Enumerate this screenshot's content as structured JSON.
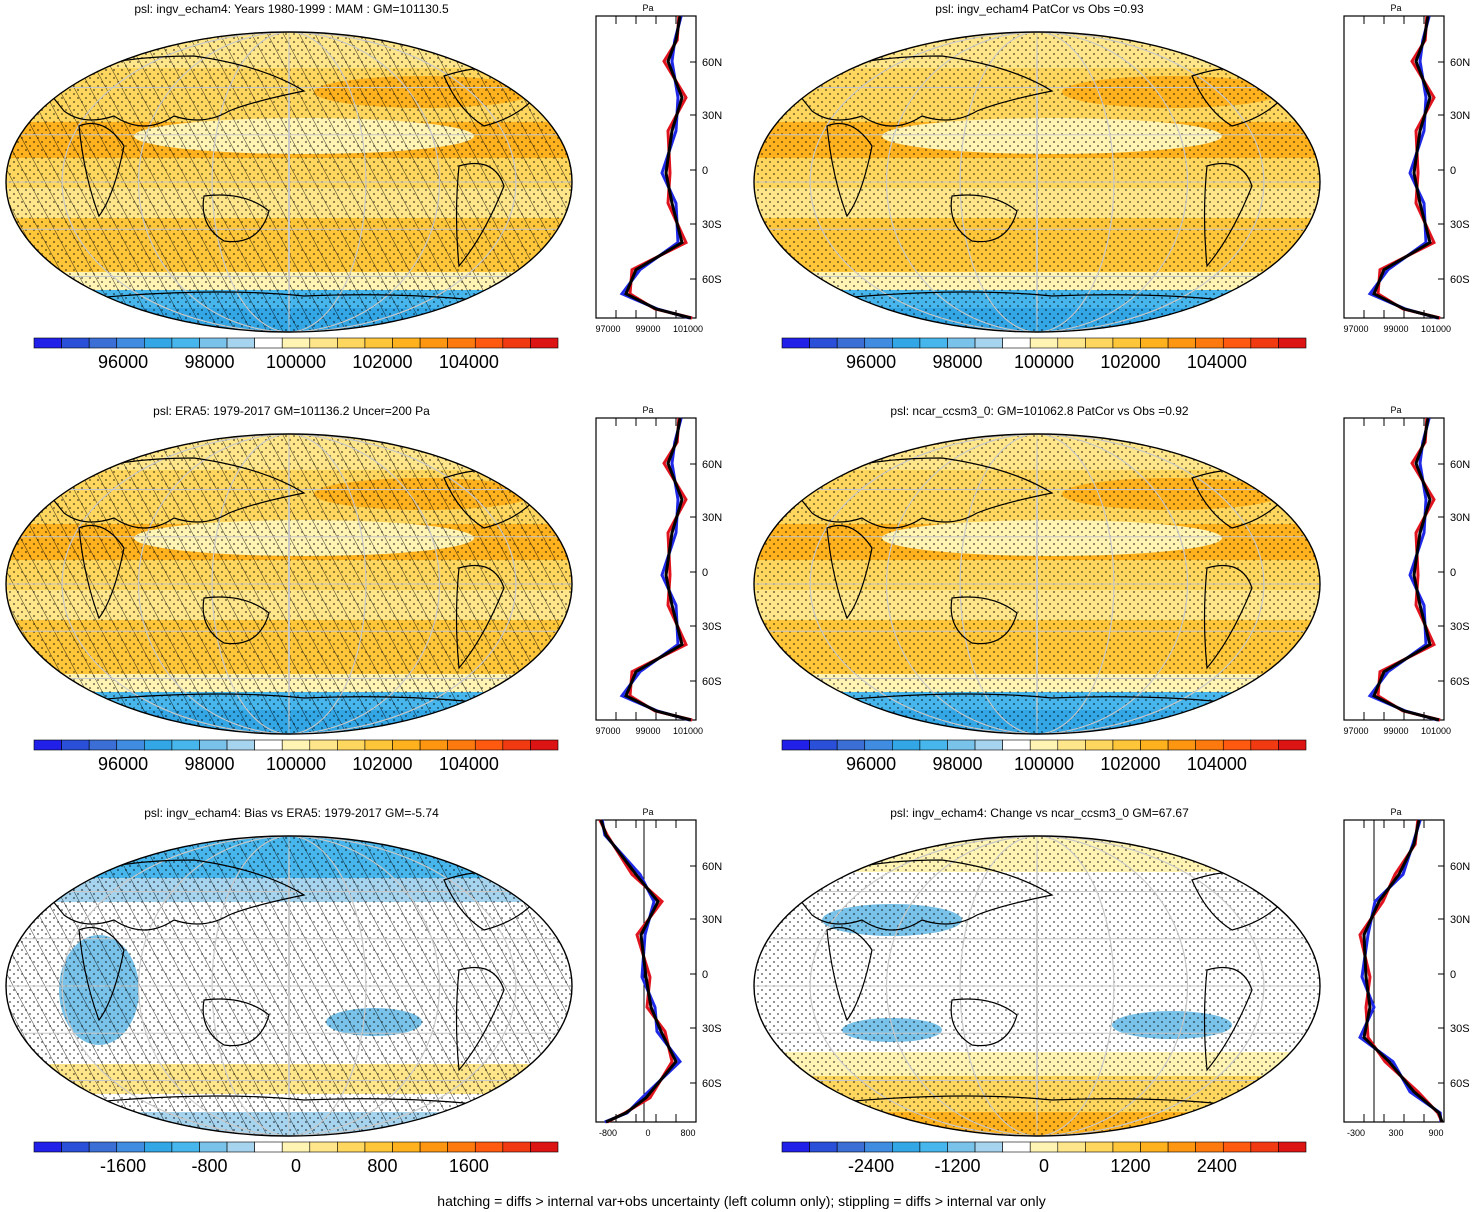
{
  "colors": {
    "coast": "#000000",
    "grid": "#c8c8c8",
    "obs_line": "#000000",
    "model_a_line": "#e0141e",
    "model_b_line": "#1e28e6",
    "levels_16": [
      "#2020e8",
      "#2a4fd8",
      "#3b6fd6",
      "#3f8ce0",
      "#33a6e6",
      "#46b6ec",
      "#79c3ea",
      "#a6d4ee",
      "#ffffff",
      "#fff4b4",
      "#ffe68a",
      "#ffd75e",
      "#ffc63a",
      "#ffb11e",
      "#ff9612",
      "#ff7a0e",
      "#ff5a10",
      "#f23a12",
      "#dc1414"
    ]
  },
  "footnote": "hatching = diffs > internal var+obs uncertainty (left column only); stippling = diffs > internal var only",
  "panels": [
    {
      "id": "p1",
      "title": "psl: ingv_echam4: Years 1980-1999 : MAM : GM=101130.5",
      "kind": "absolute",
      "hatched": true,
      "colorbar_labels": [
        "96000",
        "98000",
        "100000",
        "102000",
        "104000"
      ],
      "profile_unit": "Pa",
      "profile_x_labels": [
        "97000",
        "99000",
        "101000"
      ],
      "lat_labels": [
        "60N",
        "30N",
        "0",
        "30S",
        "60S"
      ]
    },
    {
      "id": "p2",
      "title": "psl: ingv_echam4 PatCor vs Obs =0.93",
      "kind": "absolute",
      "hatched": false,
      "colorbar_labels": [
        "96000",
        "98000",
        "100000",
        "102000",
        "104000"
      ],
      "profile_unit": "Pa",
      "profile_x_labels": [
        "97000",
        "99000",
        "101000"
      ],
      "lat_labels": [
        "60N",
        "30N",
        "0",
        "30S",
        "60S"
      ]
    },
    {
      "id": "p3",
      "title": "psl: ERA5: 1979-2017 GM=101136.2 Uncer=200 Pa",
      "kind": "absolute",
      "hatched": true,
      "colorbar_labels": [
        "96000",
        "98000",
        "100000",
        "102000",
        "104000"
      ],
      "profile_unit": "Pa",
      "profile_x_labels": [
        "97000",
        "99000",
        "101000"
      ],
      "lat_labels": [
        "60N",
        "30N",
        "0",
        "30S",
        "60S"
      ]
    },
    {
      "id": "p4",
      "title": "psl: ncar_ccsm3_0: GM=101062.8 PatCor vs Obs =0.92",
      "kind": "absolute",
      "hatched": false,
      "colorbar_labels": [
        "96000",
        "98000",
        "100000",
        "102000",
        "104000"
      ],
      "profile_unit": "Pa",
      "profile_x_labels": [
        "97000",
        "99000",
        "101000"
      ],
      "lat_labels": [
        "60N",
        "30N",
        "0",
        "30S",
        "60S"
      ]
    },
    {
      "id": "p5",
      "title": "psl: ingv_echam4: Bias vs ERA5: 1979-2017 GM=-5.74",
      "kind": "bias",
      "hatched": true,
      "colorbar_labels": [
        "-1600",
        "-800",
        "0",
        "800",
        "1600"
      ],
      "profile_unit": "Pa",
      "profile_x_labels": [
        "-800",
        "0",
        "800"
      ],
      "lat_labels": [
        "60N",
        "30N",
        "0",
        "30S",
        "60S"
      ]
    },
    {
      "id": "p6",
      "title": "psl: ingv_echam4: Change vs ncar_ccsm3_0 GM=67.67",
      "kind": "change",
      "hatched": false,
      "colorbar_labels": [
        "-2400",
        "-1200",
        "0",
        "1200",
        "2400"
      ],
      "profile_unit": "Pa",
      "profile_x_labels": [
        "-300",
        "300",
        "900"
      ],
      "lat_labels": [
        "60N",
        "30N",
        "0",
        "30S",
        "60S"
      ]
    }
  ]
}
